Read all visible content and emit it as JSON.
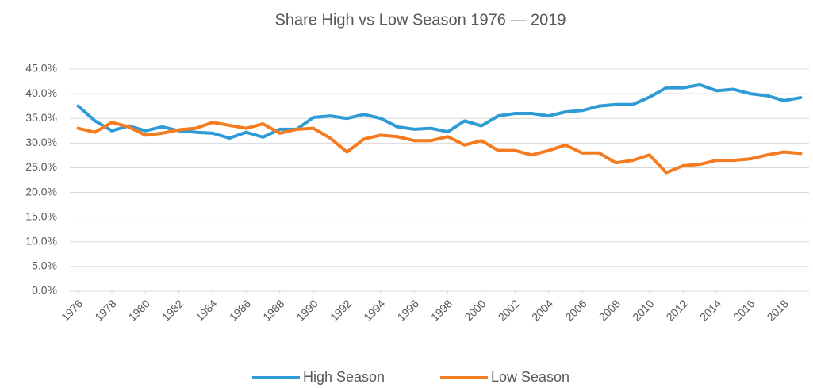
{
  "chart_data": {
    "type": "line",
    "title": "Share High vs Low Season 1976 — 2019",
    "x": [
      1976,
      1977,
      1978,
      1979,
      1980,
      1981,
      1982,
      1983,
      1984,
      1985,
      1986,
      1987,
      1988,
      1989,
      1990,
      1991,
      1992,
      1993,
      1994,
      1995,
      1996,
      1997,
      1998,
      1999,
      2000,
      2001,
      2002,
      2003,
      2004,
      2005,
      2006,
      2007,
      2008,
      2009,
      2010,
      2011,
      2012,
      2013,
      2014,
      2015,
      2016,
      2017,
      2018,
      2019
    ],
    "xlim": [
      1975.5,
      2019.5
    ],
    "xticks": [
      1976,
      1978,
      1980,
      1982,
      1984,
      1986,
      1988,
      1990,
      1992,
      1994,
      1996,
      1998,
      2000,
      2002,
      2004,
      2006,
      2008,
      2010,
      2012,
      2014,
      2016,
      2018
    ],
    "ylim": [
      0,
      45
    ],
    "yticks": [
      {
        "value": 0,
        "label": "0.0%"
      },
      {
        "value": 5,
        "label": "5.0%"
      },
      {
        "value": 10,
        "label": "10.0%"
      },
      {
        "value": 15,
        "label": "15.0%"
      },
      {
        "value": 20,
        "label": "20.0%"
      },
      {
        "value": 25,
        "label": "25.0%"
      },
      {
        "value": 30,
        "label": "30.0%"
      },
      {
        "value": 35,
        "label": "35.0%"
      },
      {
        "value": 40,
        "label": "40.0%"
      },
      {
        "value": 45,
        "label": "45.0%"
      }
    ],
    "grid": true,
    "legend": "bottom",
    "series": [
      {
        "name": "High Season",
        "color": "#2e9bd6",
        "values": [
          37.5,
          34.5,
          32.5,
          33.5,
          32.5,
          33.3,
          32.5,
          32.2,
          32.0,
          31.0,
          32.2,
          31.2,
          32.8,
          32.8,
          35.2,
          35.5,
          35.0,
          35.8,
          35.0,
          33.3,
          32.8,
          33.0,
          32.3,
          34.5,
          33.5,
          35.5,
          36.0,
          36.0,
          35.5,
          36.3,
          36.6,
          37.5,
          37.8,
          37.8,
          39.3,
          41.2,
          41.2,
          41.8,
          40.6,
          40.9,
          40.0,
          39.6,
          38.6,
          39.2
        ]
      },
      {
        "name": "Low Season",
        "color": "#f47b20",
        "values": [
          33.0,
          32.2,
          34.2,
          33.3,
          31.6,
          32.0,
          32.7,
          33.0,
          34.2,
          33.6,
          33.0,
          33.9,
          32.0,
          32.8,
          33.0,
          31.0,
          28.2,
          30.8,
          31.6,
          31.3,
          30.5,
          30.5,
          31.3,
          29.6,
          30.5,
          28.5,
          28.5,
          27.6,
          28.5,
          29.6,
          28.0,
          28.0,
          26.0,
          26.5,
          27.6,
          24.0,
          25.4,
          25.7,
          26.5,
          26.5,
          26.8,
          27.6,
          28.2,
          27.9
        ]
      }
    ]
  }
}
